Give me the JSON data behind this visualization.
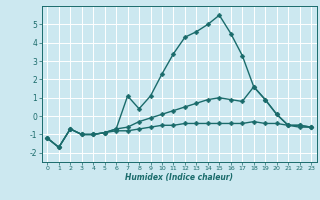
{
  "xlabel": "Humidex (Indice chaleur)",
  "background_color": "#cce8f0",
  "grid_color": "#ffffff",
  "line_color": "#1a6b6b",
  "xlim": [
    -0.5,
    23.5
  ],
  "ylim": [
    -2.5,
    6.0
  ],
  "xticks": [
    0,
    1,
    2,
    3,
    4,
    5,
    6,
    7,
    8,
    9,
    10,
    11,
    12,
    13,
    14,
    15,
    16,
    17,
    18,
    19,
    20,
    21,
    22,
    23
  ],
  "yticks": [
    -2,
    -1,
    0,
    1,
    2,
    3,
    4,
    5
  ],
  "line1_x": [
    0,
    1,
    2,
    3,
    4,
    5,
    6,
    7,
    8,
    9,
    10,
    11,
    12,
    13,
    14,
    15,
    16,
    17,
    18,
    19,
    20,
    21,
    22,
    23
  ],
  "line1_y": [
    -1.2,
    -1.7,
    -0.7,
    -1.0,
    -1.0,
    -0.9,
    -0.8,
    -0.8,
    -0.7,
    -0.6,
    -0.5,
    -0.5,
    -0.4,
    -0.4,
    -0.4,
    -0.4,
    -0.4,
    -0.4,
    -0.3,
    -0.4,
    -0.4,
    -0.5,
    -0.6,
    -0.6
  ],
  "line2_x": [
    0,
    1,
    2,
    3,
    4,
    5,
    6,
    7,
    8,
    9,
    10,
    11,
    12,
    13,
    14,
    15,
    16,
    17,
    18,
    19,
    20,
    21,
    22,
    23
  ],
  "line2_y": [
    -1.2,
    -1.7,
    -0.7,
    -1.0,
    -1.0,
    -0.9,
    -0.7,
    -0.6,
    -0.3,
    -0.1,
    0.1,
    0.3,
    0.5,
    0.7,
    0.9,
    1.0,
    0.9,
    0.8,
    1.6,
    0.9,
    0.1,
    -0.5,
    -0.5,
    -0.6
  ],
  "line3_x": [
    0,
    1,
    2,
    3,
    4,
    5,
    6,
    7,
    8,
    9,
    10,
    11,
    12,
    13,
    14,
    15,
    16,
    17,
    18,
    19,
    20,
    21,
    22,
    23
  ],
  "line3_y": [
    -1.2,
    -1.7,
    -0.7,
    -1.0,
    -1.0,
    -0.9,
    -0.7,
    1.1,
    0.4,
    1.1,
    2.3,
    3.4,
    4.3,
    4.6,
    5.0,
    5.5,
    4.5,
    3.3,
    1.6,
    0.9,
    0.1,
    -0.5,
    -0.5,
    -0.6
  ],
  "marker": "D",
  "markersize": 2.5,
  "linewidth": 1.0
}
